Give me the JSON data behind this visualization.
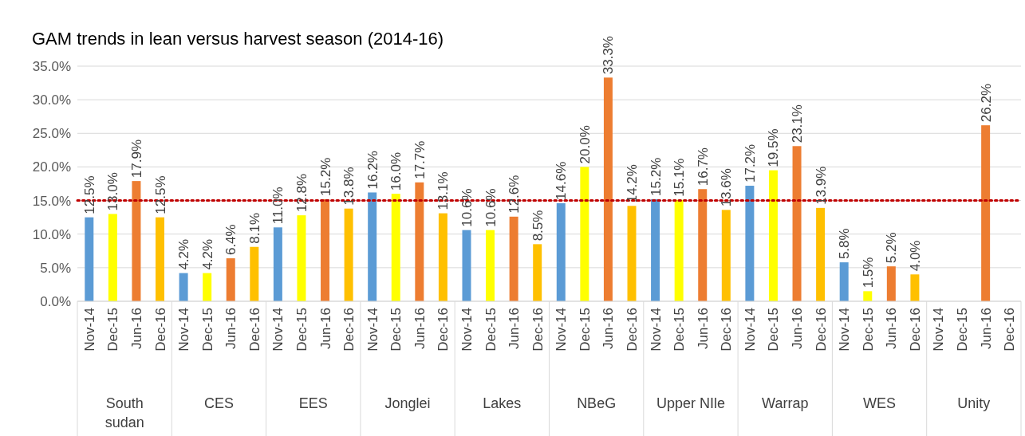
{
  "chart_data": {
    "type": "bar",
    "title": "GAM trends in lean versus harvest season (2014-16)",
    "categories": [
      "South sudan",
      "CES",
      "EES",
      "Jonglei",
      "Lakes",
      "NBeG",
      "Upper NIle",
      "Warrap",
      "WES",
      "Unity"
    ],
    "series": [
      {
        "name": "Nov-14",
        "color": "#5b9bd5",
        "values": [
          12.5,
          4.2,
          11.0,
          16.2,
          10.6,
          14.6,
          15.2,
          17.2,
          5.8,
          null
        ],
        "value_labels": [
          "12.5%",
          "4.2%",
          "11.0%",
          "16.2%",
          "10.6%",
          "14.6%",
          "15.2%",
          "17.2%",
          "5.8%",
          null
        ]
      },
      {
        "name": "Dec-15",
        "color": "#ffff00",
        "values": [
          13.0,
          4.2,
          12.8,
          16.0,
          10.6,
          20.0,
          15.1,
          19.5,
          1.5,
          null
        ],
        "value_labels": [
          "13.0%",
          "4.2%",
          "12.8%",
          "16.0%",
          "10.6%",
          "20.0%",
          "15.1%",
          "19.5%",
          "1.5%",
          null
        ]
      },
      {
        "name": "Jun-16",
        "color": "#ed7d31",
        "values": [
          17.9,
          6.4,
          15.2,
          17.7,
          12.6,
          33.3,
          16.7,
          23.1,
          5.2,
          26.2
        ],
        "value_labels": [
          "17.9%",
          "6.4%",
          "15.2%",
          "17.7%",
          "12.6%",
          "33.3%",
          "16.7%",
          "23.1%",
          "5.2%",
          "26.2%"
        ]
      },
      {
        "name": "Dec-16",
        "color": "#ffc000",
        "values": [
          12.5,
          8.1,
          13.8,
          13.1,
          8.5,
          14.2,
          13.6,
          13.9,
          4.0,
          null
        ],
        "value_labels": [
          "12.5%",
          "8.1%",
          "13.8%",
          "13.1%",
          "8.5%",
          "14.2%",
          "13.6%",
          "13.9%",
          "4.0%",
          null
        ]
      }
    ],
    "ylim": [
      0,
      35
    ],
    "yticks": [
      {
        "value": 0,
        "label": "0.0%"
      },
      {
        "value": 5,
        "label": "5.0%"
      },
      {
        "value": 10,
        "label": "10.0%"
      },
      {
        "value": 15,
        "label": "15.0%"
      },
      {
        "value": 20,
        "label": "20.0%"
      },
      {
        "value": 25,
        "label": "25.0%"
      },
      {
        "value": 30,
        "label": "30.0%"
      },
      {
        "value": 35,
        "label": "35.0%"
      }
    ],
    "grid": "y",
    "ref_lines": [
      {
        "axis": "y",
        "value": 15,
        "color": "#c00000",
        "line_style": "dotted"
      }
    ]
  }
}
